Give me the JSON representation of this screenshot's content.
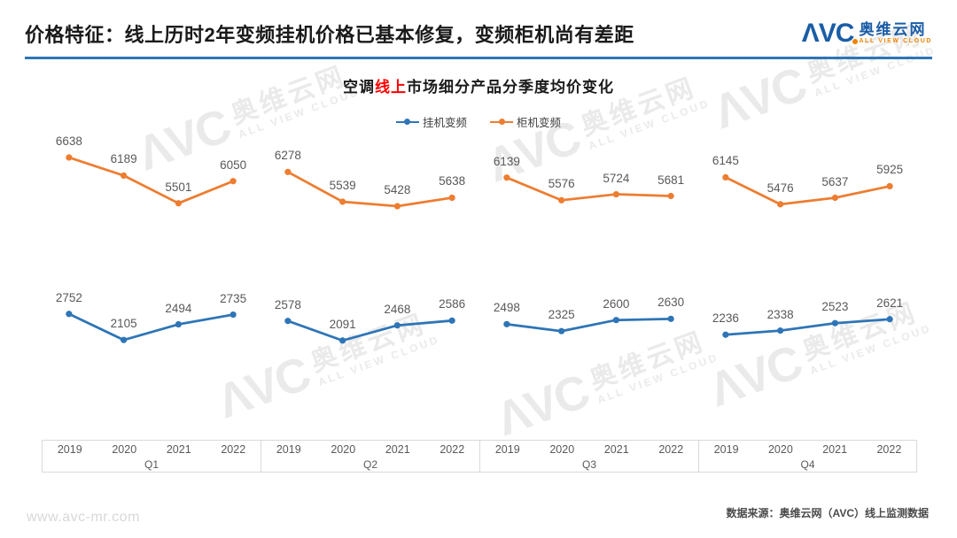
{
  "header": {
    "title": "价格特征：线上历时2年变频挂机价格已基本修复，变频柜机尚有差距",
    "logo": {
      "mark": "ΛVC",
      "name_cn": "奥维云网",
      "name_en": "ALL VIEW CLOUD"
    }
  },
  "chart_data": {
    "type": "line",
    "title": {
      "prefix": "空调",
      "highlight": "线上",
      "suffix": "市场细分产品分季度均价变化"
    },
    "legend_position": "top-center",
    "grid": false,
    "ylim": [
      0,
      7400
    ],
    "quarters": [
      "Q1",
      "Q2",
      "Q3",
      "Q4"
    ],
    "years": [
      "2019",
      "2020",
      "2021",
      "2022"
    ],
    "series": [
      {
        "id": "guaji",
        "name": "挂机变频",
        "color": "#2E75B6",
        "values_by_quarter": [
          [
            2752,
            2105,
            2494,
            2735
          ],
          [
            2578,
            2091,
            2468,
            2586
          ],
          [
            2498,
            2325,
            2600,
            2630
          ],
          [
            2236,
            2338,
            2523,
            2621
          ]
        ]
      },
      {
        "id": "guiji",
        "name": "柜机变频",
        "color": "#ED7D31",
        "values_by_quarter": [
          [
            6638,
            6189,
            5501,
            6050
          ],
          [
            6278,
            5539,
            5428,
            5638
          ],
          [
            6139,
            5576,
            5724,
            5681
          ],
          [
            6145,
            5476,
            5637,
            5925
          ]
        ]
      }
    ]
  },
  "watermark": {
    "mark": "ΛVC",
    "name_cn": "奥维云网",
    "name_en": "ALL VIEW CLOUD"
  },
  "footer": {
    "website": "www.avc-mr.com",
    "source": "数据来源：奥维云网（AVC）线上监测数据"
  }
}
